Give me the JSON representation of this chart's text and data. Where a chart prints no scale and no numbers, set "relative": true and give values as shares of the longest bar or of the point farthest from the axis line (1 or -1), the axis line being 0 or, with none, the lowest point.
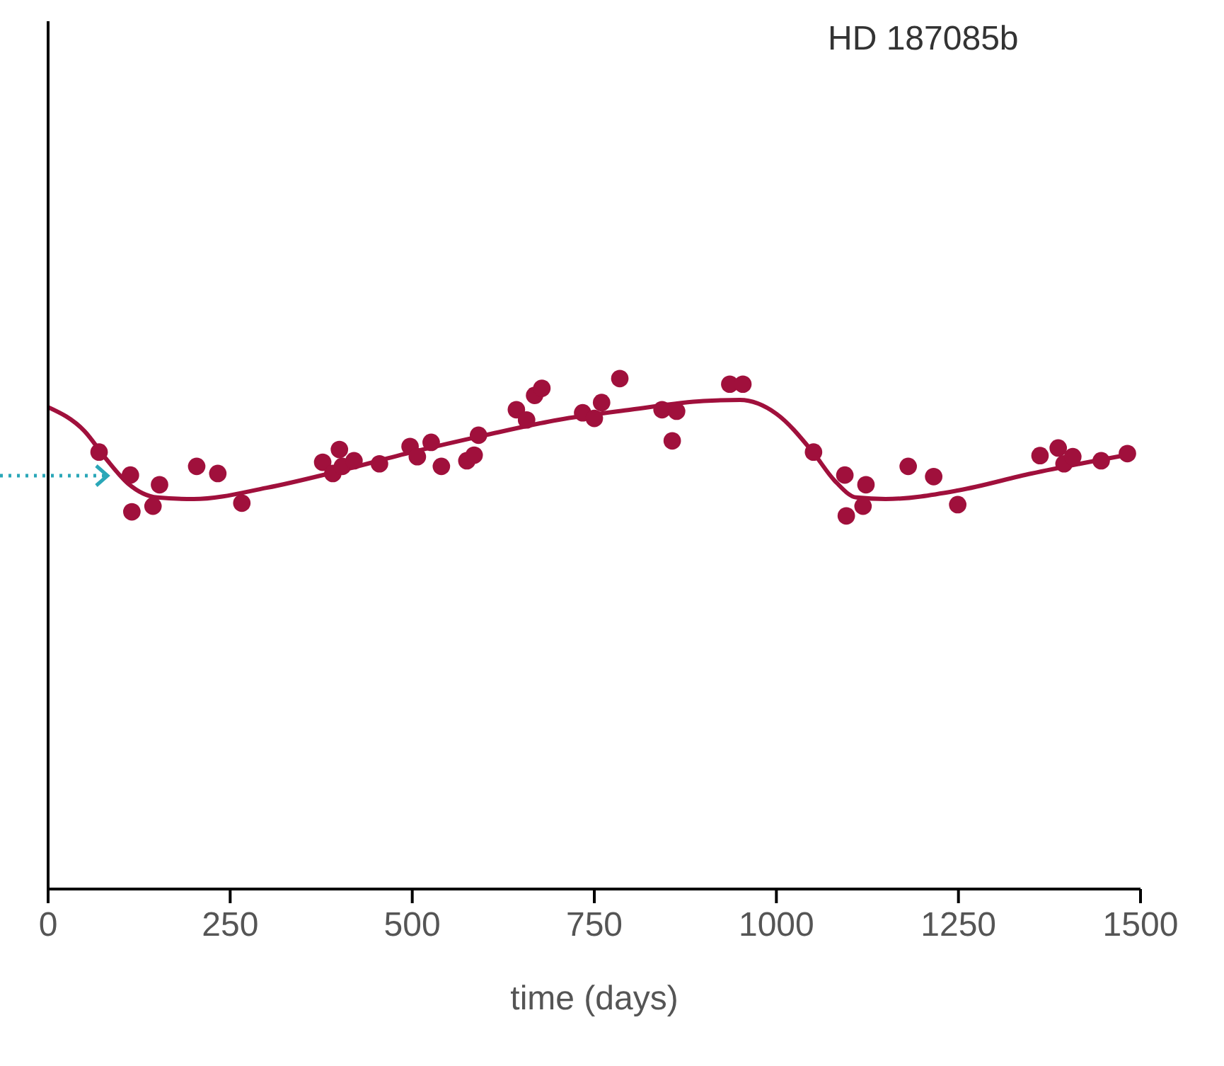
{
  "chart_data": {
    "type": "scatter",
    "title": "HD 187085b",
    "xlabel": "time (days)",
    "relative": true,
    "xlim": [
      0,
      1500
    ],
    "xticks": [
      0,
      250,
      500,
      750,
      1000,
      1250,
      1500
    ],
    "grid": false,
    "legend": false,
    "series": [
      {
        "color": "#a0103c",
        "marker": "circle",
        "x": [
          70,
          113,
          115,
          144,
          153,
          204,
          233,
          266,
          377,
          391,
          400,
          404,
          420,
          455,
          497,
          507,
          526,
          540,
          575,
          591,
          585,
          643,
          657,
          668,
          678,
          734,
          750,
          760,
          785,
          843,
          857,
          863,
          936,
          954,
          1051,
          1094,
          1096,
          1119,
          1123,
          1181,
          1216,
          1249,
          1362,
          1387,
          1395,
          1407,
          1446,
          1482
        ],
        "values": [
          0.856,
          0.811,
          0.739,
          0.75,
          0.792,
          0.828,
          0.814,
          0.756,
          0.836,
          0.814,
          0.861,
          0.828,
          0.839,
          0.833,
          0.867,
          0.847,
          0.875,
          0.828,
          0.839,
          0.889,
          0.85,
          0.939,
          0.919,
          0.967,
          0.981,
          0.933,
          0.922,
          0.953,
          1,
          0.939,
          0.878,
          0.936,
          0.989,
          0.989,
          0.856,
          0.811,
          0.731,
          0.75,
          0.792,
          0.828,
          0.808,
          0.753,
          0.849,
          0.864,
          0.833,
          0.847,
          0.839,
          0.853
        ]
      },
      {
        "type": "line",
        "color": "#a0103c",
        "marker": "none",
        "line_style": "solid",
        "x": [
          0,
          50,
          80,
          110,
          150,
          200,
          300,
          400,
          500,
          600,
          700,
          800,
          900,
          950,
          1000,
          1050,
          1080,
          1110,
          1150,
          1250,
          1350,
          1480
        ],
        "values": [
          0.944,
          0.897,
          0.842,
          0.794,
          0.767,
          0.764,
          0.786,
          0.819,
          0.856,
          0.889,
          0.919,
          0.939,
          0.956,
          0.958,
          0.931,
          0.856,
          0.8,
          0.767,
          0.764,
          0.781,
          0.814,
          0.85
        ]
      }
    ]
  }
}
